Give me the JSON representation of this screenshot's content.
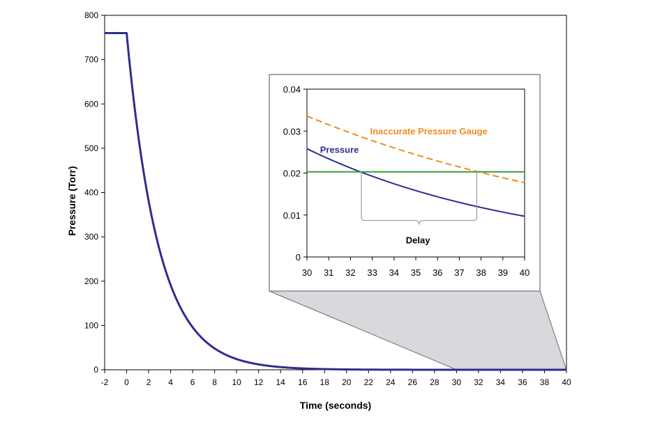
{
  "chart_data": [
    {
      "type": "line",
      "xlabel": "Time (seconds)",
      "ylabel": "Pressure (Torr)",
      "xlim": [
        -2,
        40
      ],
      "ylim": [
        0,
        800
      ],
      "x_ticks": [
        -2,
        0,
        2,
        4,
        6,
        8,
        10,
        12,
        14,
        16,
        18,
        20,
        22,
        24,
        26,
        28,
        30,
        32,
        34,
        36,
        38,
        40
      ],
      "y_ticks": [
        0,
        100,
        200,
        300,
        400,
        500,
        600,
        700,
        800
      ],
      "series": [
        {
          "name": "Pressure",
          "color": "#2e2d8e",
          "initial_value": 760,
          "hold_until": 0,
          "decay_start": 0,
          "decay_time_constant": 2.9
        }
      ],
      "zoom_region": {
        "x": [
          30,
          40
        ],
        "y": [
          0,
          0.04
        ]
      }
    },
    {
      "type": "line",
      "xlabel": "",
      "ylabel": "",
      "xlim": [
        30,
        40
      ],
      "ylim": [
        0,
        0.04
      ],
      "x_ticks": [
        30,
        31,
        32,
        33,
        34,
        35,
        36,
        37,
        38,
        39,
        40
      ],
      "y_ticks": [
        0,
        0.01,
        0.02,
        0.03,
        0.04
      ],
      "y_tick_labels": [
        "0",
        "0.01",
        "0.02",
        "0.03",
        "0.04"
      ],
      "series": [
        {
          "name": "Pressure",
          "color": "#2e2d8e",
          "dash": false,
          "x_start": 30,
          "y_start": 0.0258,
          "x_end": 40,
          "y_end": 0.0097
        },
        {
          "name": "Inaccurate Pressure Gauge",
          "color": "#f08a24",
          "dash": true,
          "x_start": 30,
          "y_start": 0.0336,
          "x_end": 40,
          "y_end": 0.0177
        },
        {
          "name": "threshold",
          "color": "#3a9a3a",
          "dash": false,
          "y_const": 0.0203
        }
      ],
      "annotations": [
        {
          "text": "Pressure",
          "color": "#2e2d8e",
          "x": 30.6,
          "y": 0.0248
        },
        {
          "text": "Inaccurate Pressure Gauge",
          "color": "#f08a24",
          "x": 32.9,
          "y": 0.0292
        },
        {
          "text": "Delay",
          "color": "#000000",
          "x": 35.1,
          "y": 0.0032
        }
      ],
      "delay_bracket": {
        "x_start": 32.5,
        "x_end": 37.8
      }
    }
  ]
}
